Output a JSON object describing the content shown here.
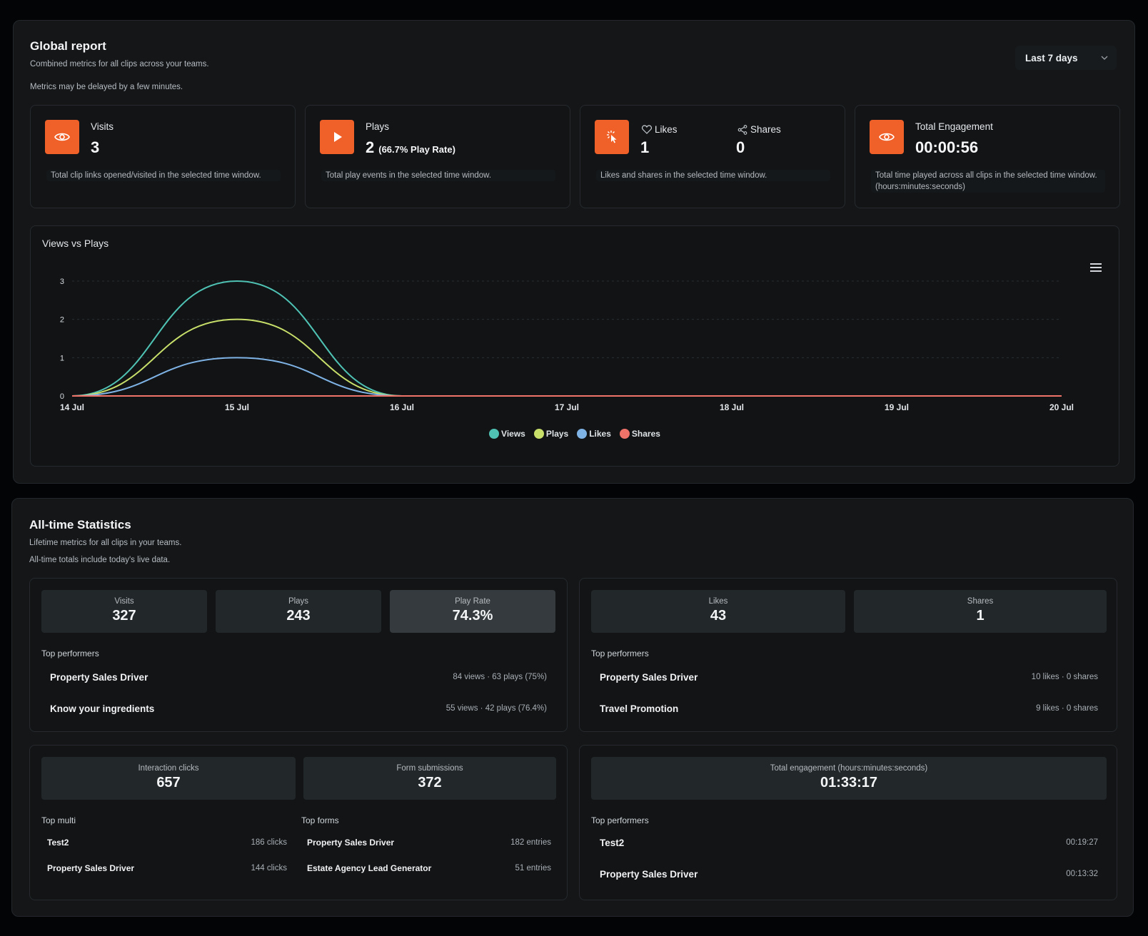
{
  "global": {
    "title": "Global report",
    "subtitle": "Combined metrics for all clips across your teams.",
    "note": "Metrics may be delayed by a few minutes.",
    "range_label": "Last 7 days",
    "cards": {
      "visits": {
        "icon": "eye-icon",
        "label": "Visits",
        "value": "3",
        "desc": "Total clip links opened/visited in the selected time window."
      },
      "plays": {
        "icon": "play-icon",
        "label": "Plays",
        "value": "2",
        "rate": "(66.7% Play Rate)",
        "desc": "Total play events in the selected time window."
      },
      "social": {
        "icon": "pointer-click-icon",
        "likes_label": "Likes",
        "likes_value": "1",
        "shares_label": "Shares",
        "shares_value": "0",
        "desc": "Likes and shares in the selected time window."
      },
      "engagement": {
        "icon": "eye-icon",
        "label": "Total Engagement",
        "value": "00:00:56",
        "desc": "Total time played across all clips in the selected time window. (hours:minutes:seconds)"
      }
    }
  },
  "chart_data": {
    "type": "line",
    "title": "Views vs Plays",
    "x": [
      "14 Jul",
      "15 Jul",
      "16 Jul",
      "17 Jul",
      "18 Jul",
      "19 Jul",
      "20 Jul"
    ],
    "ylim": [
      0,
      3
    ],
    "yticks": [
      "0",
      "1",
      "2",
      "3"
    ],
    "grid": true,
    "legend_position": "bottom",
    "series": [
      {
        "name": "Views",
        "color": "#4fc2b4",
        "values": [
          0,
          3,
          0,
          0,
          0,
          0,
          0
        ]
      },
      {
        "name": "Plays",
        "color": "#c8df6a",
        "values": [
          0,
          2,
          0,
          0,
          0,
          0,
          0
        ]
      },
      {
        "name": "Likes",
        "color": "#7fb3e6",
        "values": [
          0,
          1,
          0,
          0,
          0,
          0,
          0
        ]
      },
      {
        "name": "Shares",
        "color": "#f0736a",
        "values": [
          0,
          0,
          0,
          0,
          0,
          0,
          0
        ]
      }
    ]
  },
  "alltime": {
    "title": "All-time Statistics",
    "subtitle": "Lifetime metrics for all clips in your teams.",
    "note": "All-time totals include today's live data.",
    "views_box": {
      "visits_label": "Visits",
      "visits_value": "327",
      "plays_label": "Plays",
      "plays_value": "243",
      "rate_label": "Play Rate",
      "rate_value": "74.3%",
      "top_label": "Top performers",
      "top": [
        {
          "name": "Property Sales Driver",
          "meta": "84 views · 63 plays (75%)"
        },
        {
          "name": "Know your ingredients",
          "meta": "55 views · 42 plays (76.4%)"
        }
      ]
    },
    "social_box": {
      "likes_label": "Likes",
      "likes_value": "43",
      "shares_label": "Shares",
      "shares_value": "1",
      "top_label": "Top performers",
      "top": [
        {
          "name": "Property Sales Driver",
          "meta": "10 likes · 0 shares"
        },
        {
          "name": "Travel Promotion",
          "meta": "9 likes · 0 shares"
        }
      ]
    },
    "interaction_box": {
      "clicks_label": "Interaction clicks",
      "clicks_value": "657",
      "forms_label": "Form submissions",
      "forms_value": "372",
      "multi_label": "Top multi",
      "multi": [
        {
          "name": "Test2",
          "meta": "186 clicks"
        },
        {
          "name": "Property Sales Driver",
          "meta": "144 clicks"
        }
      ],
      "forms_top_label": "Top forms",
      "forms": [
        {
          "name": "Property Sales Driver",
          "meta": "182 entries"
        },
        {
          "name": "Estate Agency Lead Generator",
          "meta": "51 entries"
        }
      ]
    },
    "engagement_box": {
      "label": "Total engagement (hours:minutes:seconds)",
      "value": "01:33:17",
      "top_label": "Top performers",
      "top": [
        {
          "name": "Test2",
          "meta": "00:19:27"
        },
        {
          "name": "Property Sales Driver",
          "meta": "00:13:32"
        }
      ]
    }
  }
}
